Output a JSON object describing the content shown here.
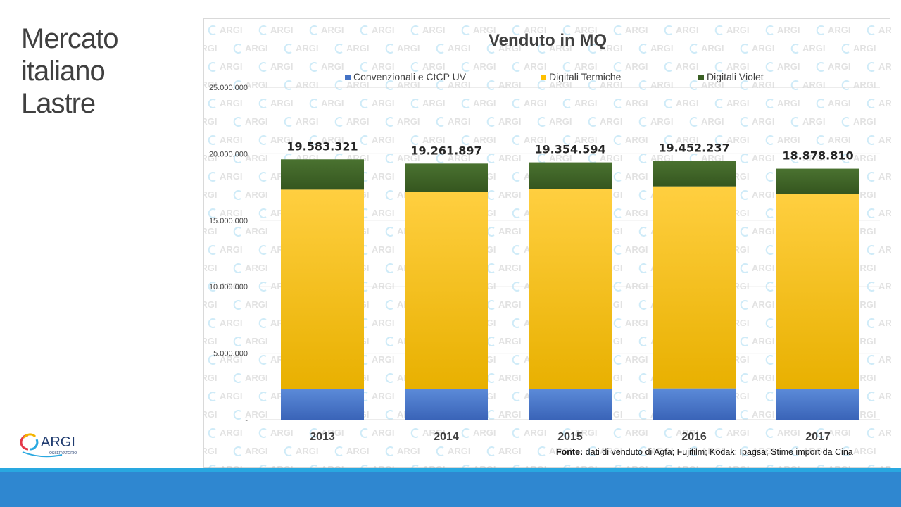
{
  "slide": {
    "title_lines": [
      "Mercato",
      "italiano",
      "Lastre"
    ],
    "logo_text": "ARGI",
    "logo_subtext": "OSSERVATORIO",
    "watermark_text": "ARGI"
  },
  "source": {
    "label": "Fonte:",
    "text": " dati di venduto di Agfa; Fujifilm; Kodak; Ipagsa; Stime import da Cina"
  },
  "colors": {
    "conv": "#4472c4",
    "term": "#ffc000",
    "violet": "#3a5f24",
    "band": "#2f87d0"
  },
  "chart_data": {
    "type": "bar",
    "stacked": true,
    "title": "Venduto in MQ",
    "categories": [
      "2013",
      "2014",
      "2015",
      "2016",
      "2017"
    ],
    "series": [
      {
        "name": "Convenzionali e CtCP UV",
        "values": [
          2300000,
          2300000,
          2300000,
          2350000,
          2300000
        ]
      },
      {
        "name": "Digitali Termiche",
        "values": [
          15000000,
          14850000,
          15050000,
          15200000,
          14700000
        ]
      },
      {
        "name": "Digitali Violet",
        "values": [
          2283321,
          2111897,
          2004594,
          1902237,
          1878810
        ]
      }
    ],
    "totals": [
      19583321,
      19261897,
      19354594,
      19452237,
      18878810
    ],
    "total_labels": [
      "19.583.321",
      "19.261.897",
      "19.354.594",
      "19.452.237",
      "18.878.810"
    ],
    "y_ticks": [
      0,
      5000000,
      10000000,
      15000000,
      20000000,
      25000000
    ],
    "y_tick_labels": [
      "-",
      "5.000.000",
      "10.000.000",
      "15.000.000",
      "20.000.000",
      "25.000.000"
    ],
    "ylim": [
      0,
      25000000
    ],
    "grid": true,
    "legend": "top"
  }
}
